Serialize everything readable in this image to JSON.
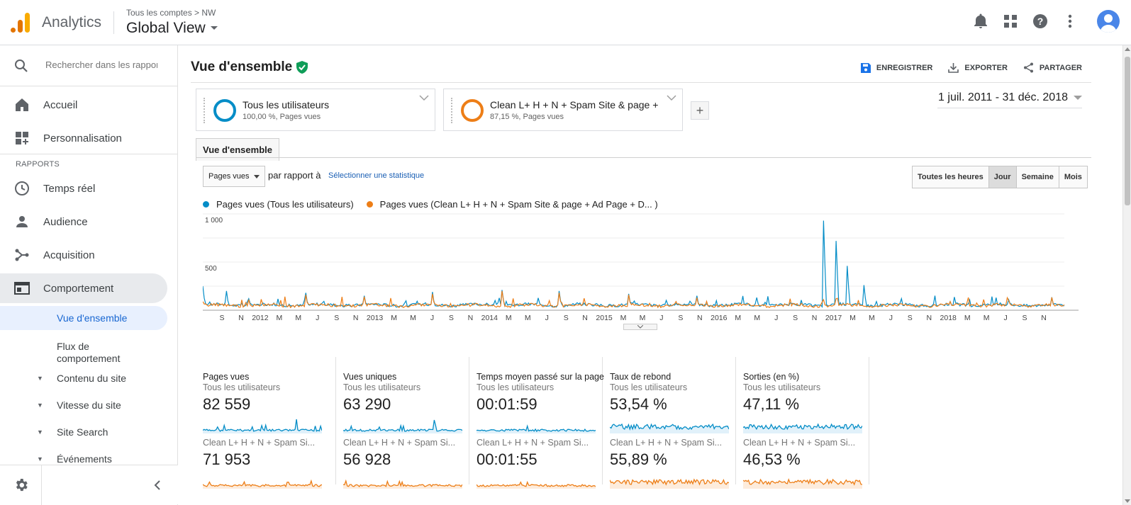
{
  "header": {
    "app_name": "Analytics",
    "breadcrumb": "Tous les comptes > NW",
    "view_name": "Global View"
  },
  "sidebar": {
    "search_placeholder": "Rechercher dans les rapports",
    "home_label": "Accueil",
    "customization_label": "Personnalisation",
    "reports_section": "RAPPORTS",
    "items": [
      {
        "label": "Temps réel",
        "icon": "clock-icon"
      },
      {
        "label": "Audience",
        "icon": "person-icon"
      },
      {
        "label": "Acquisition",
        "icon": "acquisition-icon"
      },
      {
        "label": "Comportement",
        "icon": "behavior-icon"
      }
    ],
    "behavior_children": [
      {
        "label": "Vue d'ensemble"
      },
      {
        "label": "Flux de comportement"
      },
      {
        "label": "Contenu du site"
      },
      {
        "label": "Vitesse du site"
      },
      {
        "label": "Site Search"
      },
      {
        "label": "Événements"
      }
    ]
  },
  "page": {
    "title": "Vue d'ensemble",
    "actions": {
      "save": "ENREGISTRER",
      "export": "EXPORTER",
      "share": "PARTAGER"
    },
    "date_range": "1 juil. 2011 - 31 déc. 2018",
    "tab": "Vue d'ensemble",
    "metric": "Pages vues",
    "compare_label": "par rapport à",
    "select_metric": "Sélectionner une statistique",
    "granularity": [
      "Toutes les heures",
      "Jour",
      "Semaine",
      "Mois"
    ],
    "granularity_active": "Jour"
  },
  "segments": [
    {
      "name": "Tous les utilisateurs",
      "detail": "100,00 %, Pages vues",
      "color": "#058dc7"
    },
    {
      "name": "Clean L+ H + N + Spam Site & page + Ad Page + D...",
      "detail": "87,15 %, Pages vues",
      "color": "#ed7e17"
    }
  ],
  "chart_data": {
    "type": "line",
    "legend": [
      "Pages vues (Tous les utilisateurs)",
      "Pages vues (Clean L+ H + N + Spam Site & page + Ad Page + D... )"
    ],
    "y_ticks": [
      "1 000",
      "500"
    ],
    "ylim": [
      0,
      1000
    ],
    "x_ticks": [
      "S",
      "N",
      "2012",
      "M",
      "M",
      "J",
      "S",
      "N",
      "2013",
      "M",
      "M",
      "J",
      "S",
      "N",
      "2014",
      "M",
      "M",
      "J",
      "S",
      "N",
      "2015",
      "M",
      "M",
      "J",
      "S",
      "N",
      "2016",
      "M",
      "M",
      "J",
      "S",
      "N",
      "2017",
      "M",
      "M",
      "J",
      "S",
      "N",
      "2018",
      "M",
      "M",
      "J",
      "S",
      "N"
    ],
    "series": [
      {
        "name": "Pages vues (Tous les utilisateurs)",
        "color": "#058dc7",
        "spikes": [
          [
            0.0,
            250
          ],
          [
            0.2,
            200
          ],
          [
            0.4,
            120
          ],
          [
            0.9,
            180
          ],
          [
            1.4,
            150
          ],
          [
            2.0,
            190
          ],
          [
            2.6,
            210
          ],
          [
            3.1,
            200
          ],
          [
            3.7,
            170
          ],
          [
            4.3,
            150
          ],
          [
            5.4,
            930
          ],
          [
            5.5,
            720
          ],
          [
            5.6,
            460
          ],
          [
            5.75,
            260
          ],
          [
            6.5,
            90
          ],
          [
            7.0,
            110
          ]
        ],
        "baseline": 40
      },
      {
        "name": "Pages vues (Clean L+ H + N + Spam Site & page + Ad Page + D... )",
        "color": "#ed7e17",
        "spikes": [
          [
            0.0,
            90
          ],
          [
            0.4,
            110
          ],
          [
            0.9,
            160
          ],
          [
            1.4,
            140
          ],
          [
            2.0,
            170
          ],
          [
            2.6,
            200
          ],
          [
            3.1,
            180
          ],
          [
            3.7,
            160
          ],
          [
            4.3,
            130
          ],
          [
            5.4,
            110
          ],
          [
            5.5,
            120
          ],
          [
            6.5,
            90
          ],
          [
            7.0,
            100
          ]
        ],
        "baseline": 35
      }
    ]
  },
  "scorecards": [
    {
      "title": "Pages vues",
      "seg1_label": "Tous les utilisateurs",
      "seg1_value": "82 559",
      "seg2_label": "Clean L+ H + N + Spam Si...",
      "seg2_value": "71 953"
    },
    {
      "title": "Vues uniques",
      "seg1_label": "Tous les utilisateurs",
      "seg1_value": "63 290",
      "seg2_label": "Clean L+ H + N + Spam Si...",
      "seg2_value": "56 928"
    },
    {
      "title": "Temps moyen passé sur la page",
      "seg1_label": "Tous les utilisateurs",
      "seg1_value": "00:01:59",
      "seg2_label": "Clean L+ H + N + Spam Si...",
      "seg2_value": "00:01:55"
    },
    {
      "title": "Taux de rebond",
      "seg1_label": "Tous les utilisateurs",
      "seg1_value": "53,54 %",
      "seg2_label": "Clean L+ H + N + Spam Si...",
      "seg2_value": "55,89 %"
    },
    {
      "title": "Sorties (en %)",
      "seg1_label": "Tous les utilisateurs",
      "seg1_value": "47,11 %",
      "seg2_label": "Clean L+ H + N + Spam Si...",
      "seg2_value": "46,53 %"
    }
  ],
  "colors": {
    "blue": "#058dc7",
    "orange": "#ed7e17",
    "link": "#1a5fb4",
    "active_nav": "#1967d2"
  }
}
